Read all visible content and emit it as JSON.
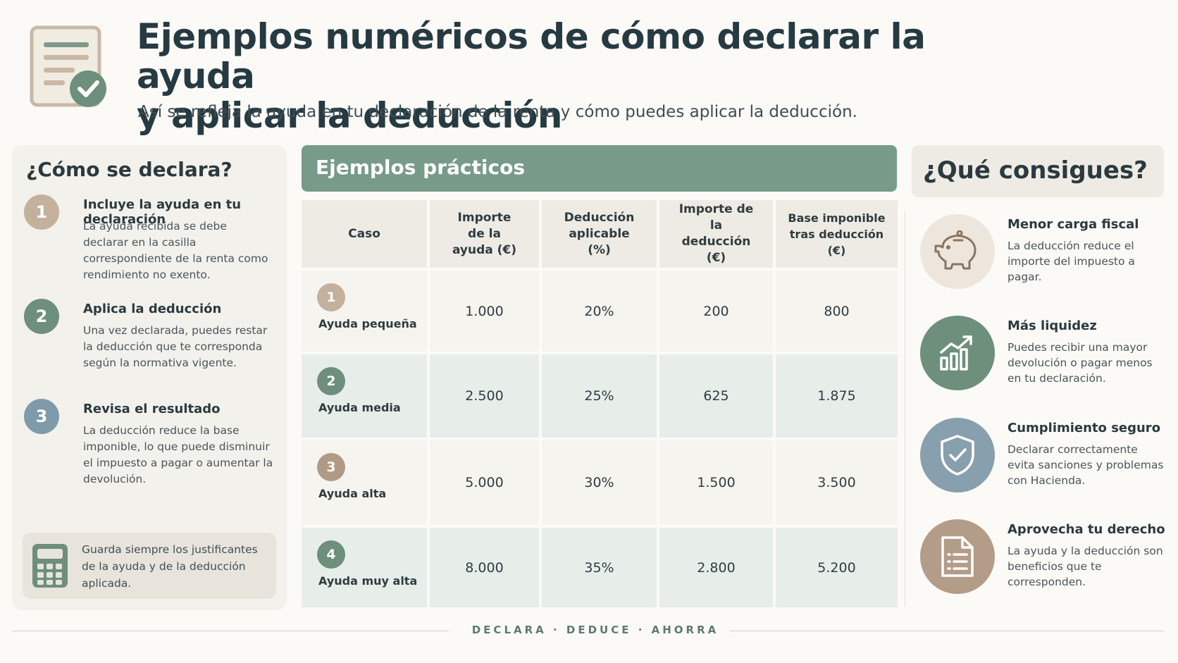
{
  "header": {
    "icon": "document-check-icon",
    "title_line1": "Ejemplos numéricos de cómo declarar la ayuda",
    "title_line2": "y aplicar la deducción",
    "subtitle": "Así se refleja la ayuda en tu declaración de la renta y cómo puedes aplicar la deducción."
  },
  "left": {
    "title": "¿Cómo se declara?",
    "steps": [
      {
        "num": "1",
        "color": "#c3b09d",
        "title": "Incluye la ayuda en tu declaración",
        "text": "La ayuda recibida se debe declarar en la casilla correspondiente de la renta como rendimiento no exento."
      },
      {
        "num": "2",
        "color": "#6d8f7c",
        "title": "Aplica la deducción",
        "text": "Una vez declarada, puedes restar la deducción que te corresponda según la normativa vigente."
      },
      {
        "num": "3",
        "color": "#7f9aaa",
        "title": "Revisa el resultado",
        "text": "La deducción reduce la base imponible, lo que puede disminuir el impuesto a pagar o aumentar la devolución."
      }
    ],
    "note": {
      "icon": "calculator-icon",
      "text": "Guarda siempre los justificantes de la ayuda y de la deducción aplicada."
    }
  },
  "middle": {
    "title": "Ejemplos prácticos",
    "headers": [
      "Caso",
      "Importe de la ayuda (€)",
      "Deducción aplicable (%)",
      "Importe de la deducción (€)",
      "Base imponible tras deducción (€)"
    ],
    "rows": [
      {
        "num": "1",
        "color": "#c3b09d",
        "case": "Ayuda pequeña",
        "importe": "1.000",
        "porcentaje": "20%",
        "deduccion": "200",
        "base": "800"
      },
      {
        "num": "2",
        "color": "#6d8f7c",
        "case": "Ayuda media",
        "importe": "2.500",
        "porcentaje": "25%",
        "deduccion": "625",
        "base": "1.875"
      },
      {
        "num": "3",
        "color": "#b09a86",
        "case": "Ayuda alta",
        "importe": "5.000",
        "porcentaje": "30%",
        "deduccion": "1.500",
        "base": "3.500"
      },
      {
        "num": "4",
        "color": "#6d8f7c",
        "case": "Ayuda muy alta",
        "importe": "8.000",
        "porcentaje": "35%",
        "deduccion": "2.800",
        "base": "5.200"
      }
    ]
  },
  "right": {
    "title": "¿Qué consigues?",
    "benefits": [
      {
        "icon": "piggy-bank-icon",
        "bg": "#ede6dc",
        "title": "Menor carga fiscal",
        "text": "La deducción reduce el importe del impuesto a pagar."
      },
      {
        "icon": "growth-chart-icon",
        "bg": "#6d8f7c",
        "title": "Más liquidez",
        "text": "Puedes recibir una mayor devolución o pagar menos en tu declaración."
      },
      {
        "icon": "shield-check-icon",
        "bg": "#889fae",
        "title": "Cumplimiento seguro",
        "text": "Declarar correctamente evita sanciones y problemas con Hacienda."
      },
      {
        "icon": "document-list-icon",
        "bg": "#b39c88",
        "title": "Aprovecha tu derecho",
        "text": "La ayuda y la deducción son beneficios que te corresponden."
      }
    ]
  },
  "footer": {
    "text": "DECLARA · DEDUCE · AHORRA"
  }
}
